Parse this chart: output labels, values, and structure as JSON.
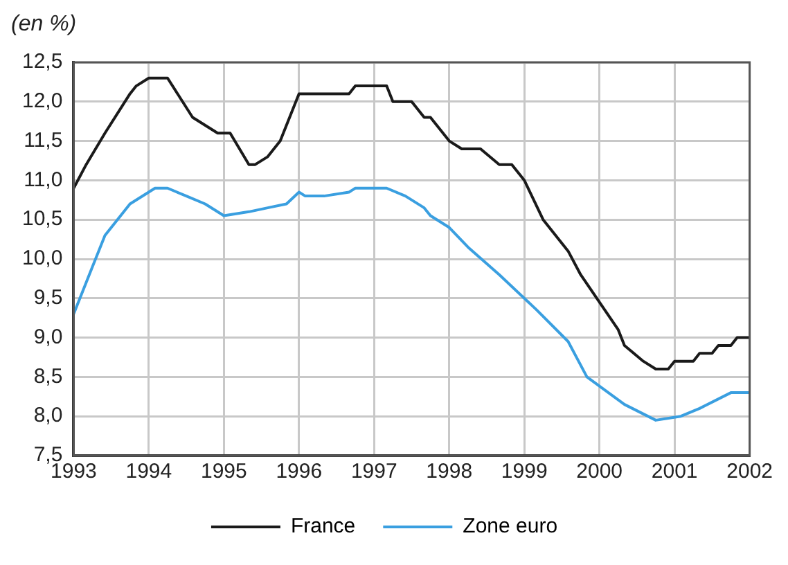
{
  "chart_data": {
    "type": "line",
    "ylabel": "(en %)",
    "x": [
      "1993-01",
      "1993-03",
      "1993-06",
      "1993-10",
      "1993-11",
      "1994-01",
      "1994-04",
      "1994-08",
      "1994-12",
      "1995-02",
      "1995-05",
      "1995-06",
      "1995-08",
      "1995-10",
      "1996-01",
      "1996-09",
      "1996-10",
      "1997-03",
      "1997-04",
      "1997-07",
      "1997-09",
      "1997-10",
      "1998-01",
      "1998-03",
      "1998-06",
      "1998-09",
      "1998-11",
      "1999-01",
      "1999-04",
      "1999-08",
      "1999-10",
      "2000-04",
      "2000-05",
      "2000-08",
      "2000-10",
      "2000-12",
      "2001-01",
      "2001-04",
      "2001-05",
      "2001-07",
      "2001-08",
      "2001-10",
      "2001-11",
      "2002-01"
    ],
    "series": [
      {
        "name": "France",
        "color": "#1a1a1a",
        "values": [
          10.9,
          11.2,
          11.6,
          12.1,
          12.2,
          12.3,
          12.3,
          11.8,
          11.6,
          11.6,
          11.2,
          11.2,
          11.3,
          11.5,
          12.1,
          12.1,
          12.2,
          12.2,
          12.0,
          12.0,
          11.8,
          11.8,
          11.5,
          11.4,
          11.4,
          11.2,
          11.2,
          11.0,
          10.5,
          10.1,
          9.8,
          9.1,
          8.9,
          8.7,
          8.6,
          8.6,
          8.7,
          8.7,
          8.8,
          8.8,
          8.9,
          8.9,
          9.0,
          9.0
        ]
      },
      {
        "name": "Zone euro",
        "color": "#3a9fe0",
        "x": [
          "1993-01",
          "1993-04",
          "1993-06",
          "1993-10",
          "1994-02",
          "1994-04",
          "1994-07",
          "1994-10",
          "1995-01",
          "1995-05",
          "1995-08",
          "1995-11",
          "1996-01",
          "1996-02",
          "1996-05",
          "1996-09",
          "1996-10",
          "1996-11",
          "1997-03",
          "1997-06",
          "1997-09",
          "1997-10",
          "1998-01",
          "1998-04",
          "1998-09",
          "1999-03",
          "1999-08",
          "1999-11",
          "2000-05",
          "2000-10",
          "2001-02",
          "2001-05",
          "2001-10",
          "2002-01"
        ],
        "values": [
          9.3,
          9.9,
          10.3,
          10.7,
          10.9,
          10.9,
          10.8,
          10.7,
          10.55,
          10.6,
          10.65,
          10.7,
          10.85,
          10.8,
          10.8,
          10.85,
          10.9,
          10.9,
          10.9,
          10.8,
          10.65,
          10.55,
          10.4,
          10.15,
          9.8,
          9.35,
          8.95,
          8.5,
          8.15,
          7.95,
          8.0,
          8.1,
          8.3,
          8.3
        ]
      }
    ],
    "xlim": [
      "1993-01",
      "2002-01"
    ],
    "xticks": [
      "1993",
      "1994",
      "1995",
      "1996",
      "1997",
      "1998",
      "1999",
      "2000",
      "2001",
      "2002"
    ],
    "ylim": [
      7.5,
      12.5
    ],
    "yticks": [
      {
        "value": 7.5,
        "label": "7,5"
      },
      {
        "value": 8,
        "label": "8,0"
      },
      {
        "value": 8.5,
        "label": "8,5"
      },
      {
        "value": 9,
        "label": "9,0"
      },
      {
        "value": 9.5,
        "label": "9,5"
      },
      {
        "value": 10,
        "label": "10,0"
      },
      {
        "value": 10.5,
        "label": "10,5"
      },
      {
        "value": 11,
        "label": "11,0"
      },
      {
        "value": 11.5,
        "label": "11,5"
      },
      {
        "value": 12,
        "label": "12,0"
      },
      {
        "value": 12.5,
        "label": "12,5"
      }
    ],
    "grid": true,
    "legend": "bottom",
    "marker": "none",
    "line_style": "solid"
  }
}
